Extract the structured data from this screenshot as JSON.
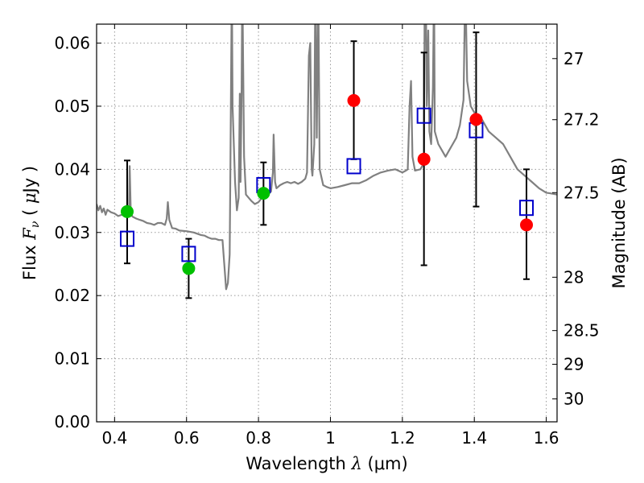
{
  "chart_data": {
    "type": "scatter",
    "xlabel": "Wavelength  λ (μm)",
    "ylabel": "Flux  Fν  ( μJy )",
    "ylabel_parts": {
      "prefix": "Flux  ",
      "symbol": "F",
      "subscript": "ν",
      "unit_open": "  ( ",
      "mu": "μ",
      "unit_rest": "Jy )"
    },
    "xlabel_parts": {
      "prefix": "Wavelength  ",
      "lambda": "λ",
      "unit": " (μm)"
    },
    "y2label": "Magnitude (AB)",
    "xlim": [
      0.35,
      1.63
    ],
    "ylim": [
      0.0,
      0.063
    ],
    "grid": true,
    "x_ticks": [
      0.4,
      0.6,
      0.8,
      1.0,
      1.2,
      1.4,
      1.6
    ],
    "x_tick_labels": [
      "0.4",
      "0.6",
      "0.8",
      "1",
      "1.2",
      "1.4",
      "1.6"
    ],
    "y_ticks": [
      0.0,
      0.01,
      0.02,
      0.03,
      0.04,
      0.05,
      0.06
    ],
    "y_tick_labels": [
      "0.00",
      "0.01",
      "0.02",
      "0.03",
      "0.04",
      "0.05",
      "0.06"
    ],
    "y2_ticks": [
      {
        "mag": 27.0,
        "label": "27"
      },
      {
        "mag": 27.2,
        "label": "27.2"
      },
      {
        "mag": 27.5,
        "label": "27.5"
      },
      {
        "mag": 28.0,
        "label": "28"
      },
      {
        "mag": 28.5,
        "label": "28.5"
      },
      {
        "mag": 29.0,
        "label": "29"
      },
      {
        "mag": 30.0,
        "label": "30"
      }
    ],
    "colors": {
      "spectrum": "#808080",
      "green_points": "#00c000",
      "red_points": "#ff0000",
      "model_squares": "#0000cc",
      "errorbars": "#000000",
      "grid": "#999999"
    },
    "spectrum": [
      [
        0.35,
        0.0345
      ],
      [
        0.355,
        0.0335
      ],
      [
        0.36,
        0.0342
      ],
      [
        0.365,
        0.0332
      ],
      [
        0.37,
        0.0338
      ],
      [
        0.375,
        0.0328
      ],
      [
        0.38,
        0.0336
      ],
      [
        0.39,
        0.0332
      ],
      [
        0.4,
        0.033
      ],
      [
        0.41,
        0.0326
      ],
      [
        0.42,
        0.0328
      ],
      [
        0.43,
        0.0327
      ],
      [
        0.435,
        0.0335
      ],
      [
        0.44,
        0.0328
      ],
      [
        0.442,
        0.0405
      ],
      [
        0.445,
        0.033
      ],
      [
        0.45,
        0.0325
      ],
      [
        0.46,
        0.0322
      ],
      [
        0.47,
        0.032
      ],
      [
        0.48,
        0.0318
      ],
      [
        0.49,
        0.0315
      ],
      [
        0.5,
        0.0314
      ],
      [
        0.51,
        0.0312
      ],
      [
        0.52,
        0.0315
      ],
      [
        0.53,
        0.0315
      ],
      [
        0.54,
        0.0312
      ],
      [
        0.545,
        0.0322
      ],
      [
        0.548,
        0.0348
      ],
      [
        0.552,
        0.032
      ],
      [
        0.56,
        0.0307
      ],
      [
        0.57,
        0.0306
      ],
      [
        0.58,
        0.0303
      ],
      [
        0.6,
        0.0302
      ],
      [
        0.62,
        0.03
      ],
      [
        0.64,
        0.0296
      ],
      [
        0.65,
        0.0295
      ],
      [
        0.66,
        0.0292
      ],
      [
        0.67,
        0.029
      ],
      [
        0.68,
        0.029
      ],
      [
        0.69,
        0.0288
      ],
      [
        0.7,
        0.0288
      ],
      [
        0.705,
        0.025
      ],
      [
        0.71,
        0.021
      ],
      [
        0.715,
        0.022
      ],
      [
        0.72,
        0.0265
      ],
      [
        0.722,
        0.04
      ],
      [
        0.726,
        0.07
      ],
      [
        0.728,
        0.05
      ],
      [
        0.735,
        0.038
      ],
      [
        0.74,
        0.0335
      ],
      [
        0.745,
        0.0355
      ],
      [
        0.748,
        0.052
      ],
      [
        0.75,
        0.038
      ],
      [
        0.753,
        0.052
      ],
      [
        0.755,
        0.07
      ],
      [
        0.76,
        0.042
      ],
      [
        0.765,
        0.036
      ],
      [
        0.78,
        0.035
      ],
      [
        0.79,
        0.0345
      ],
      [
        0.8,
        0.0348
      ],
      [
        0.81,
        0.0355
      ],
      [
        0.82,
        0.036
      ],
      [
        0.83,
        0.0362
      ],
      [
        0.835,
        0.0365
      ],
      [
        0.84,
        0.0395
      ],
      [
        0.842,
        0.0455
      ],
      [
        0.846,
        0.038
      ],
      [
        0.85,
        0.037
      ],
      [
        0.86,
        0.0375
      ],
      [
        0.87,
        0.0378
      ],
      [
        0.88,
        0.038
      ],
      [
        0.89,
        0.0378
      ],
      [
        0.9,
        0.038
      ],
      [
        0.91,
        0.0377
      ],
      [
        0.92,
        0.038
      ],
      [
        0.93,
        0.0385
      ],
      [
        0.935,
        0.0395
      ],
      [
        0.94,
        0.058
      ],
      [
        0.944,
        0.06
      ],
      [
        0.948,
        0.04
      ],
      [
        0.95,
        0.039
      ],
      [
        0.955,
        0.044
      ],
      [
        0.958,
        0.07
      ],
      [
        0.962,
        0.045
      ],
      [
        0.966,
        0.07
      ],
      [
        0.97,
        0.04
      ],
      [
        0.98,
        0.0375
      ],
      [
        0.99,
        0.0372
      ],
      [
        1.0,
        0.037
      ],
      [
        1.02,
        0.0372
      ],
      [
        1.04,
        0.0375
      ],
      [
        1.06,
        0.0378
      ],
      [
        1.08,
        0.0378
      ],
      [
        1.1,
        0.0383
      ],
      [
        1.12,
        0.039
      ],
      [
        1.14,
        0.0395
      ],
      [
        1.16,
        0.0398
      ],
      [
        1.18,
        0.04
      ],
      [
        1.2,
        0.0395
      ],
      [
        1.21,
        0.0398
      ],
      [
        1.215,
        0.04
      ],
      [
        1.22,
        0.05
      ],
      [
        1.224,
        0.054
      ],
      [
        1.228,
        0.042
      ],
      [
        1.235,
        0.0398
      ],
      [
        1.25,
        0.04
      ],
      [
        1.26,
        0.041
      ],
      [
        1.262,
        0.07
      ],
      [
        1.265,
        0.07
      ],
      [
        1.268,
        0.05
      ],
      [
        1.272,
        0.062
      ],
      [
        1.275,
        0.046
      ],
      [
        1.28,
        0.044
      ],
      [
        1.285,
        0.053
      ],
      [
        1.288,
        0.07
      ],
      [
        1.29,
        0.046
      ],
      [
        1.3,
        0.044
      ],
      [
        1.31,
        0.043
      ],
      [
        1.32,
        0.042
      ],
      [
        1.33,
        0.043
      ],
      [
        1.34,
        0.044
      ],
      [
        1.35,
        0.045
      ],
      [
        1.36,
        0.047
      ],
      [
        1.37,
        0.051
      ],
      [
        1.375,
        0.07
      ],
      [
        1.38,
        0.054
      ],
      [
        1.39,
        0.05
      ],
      [
        1.4,
        0.049
      ],
      [
        1.42,
        0.048
      ],
      [
        1.44,
        0.046
      ],
      [
        1.46,
        0.045
      ],
      [
        1.48,
        0.044
      ],
      [
        1.5,
        0.042
      ],
      [
        1.52,
        0.04
      ],
      [
        1.54,
        0.039
      ],
      [
        1.56,
        0.038
      ],
      [
        1.58,
        0.037
      ],
      [
        1.6,
        0.0363
      ],
      [
        1.61,
        0.0362
      ],
      [
        1.63,
        0.036
      ]
    ],
    "green_points": [
      {
        "x": 0.435,
        "y": 0.0333
      },
      {
        "x": 0.606,
        "y": 0.0243
      },
      {
        "x": 0.814,
        "y": 0.0362
      }
    ],
    "red_points": [
      {
        "x": 1.065,
        "y": 0.0509
      },
      {
        "x": 1.26,
        "y": 0.0416
      },
      {
        "x": 1.405,
        "y": 0.0479
      },
      {
        "x": 1.545,
        "y": 0.0312
      }
    ],
    "model_squares": [
      {
        "x": 0.435,
        "y": 0.029
      },
      {
        "x": 0.606,
        "y": 0.0266
      },
      {
        "x": 0.814,
        "y": 0.0375
      },
      {
        "x": 1.065,
        "y": 0.0405
      },
      {
        "x": 1.26,
        "y": 0.0485
      },
      {
        "x": 1.405,
        "y": 0.0462
      },
      {
        "x": 1.545,
        "y": 0.0339
      }
    ],
    "errorbars": [
      {
        "x": 0.435,
        "low": 0.0251,
        "high": 0.0414
      },
      {
        "x": 0.606,
        "low": 0.0196,
        "high": 0.029
      },
      {
        "x": 0.814,
        "low": 0.0312,
        "high": 0.0411
      },
      {
        "x": 1.065,
        "low": 0.0416,
        "high": 0.0603
      },
      {
        "x": 1.26,
        "low": 0.0248,
        "high": 0.0585
      },
      {
        "x": 1.405,
        "low": 0.0341,
        "high": 0.0617
      },
      {
        "x": 1.545,
        "low": 0.0226,
        "high": 0.04
      }
    ]
  }
}
